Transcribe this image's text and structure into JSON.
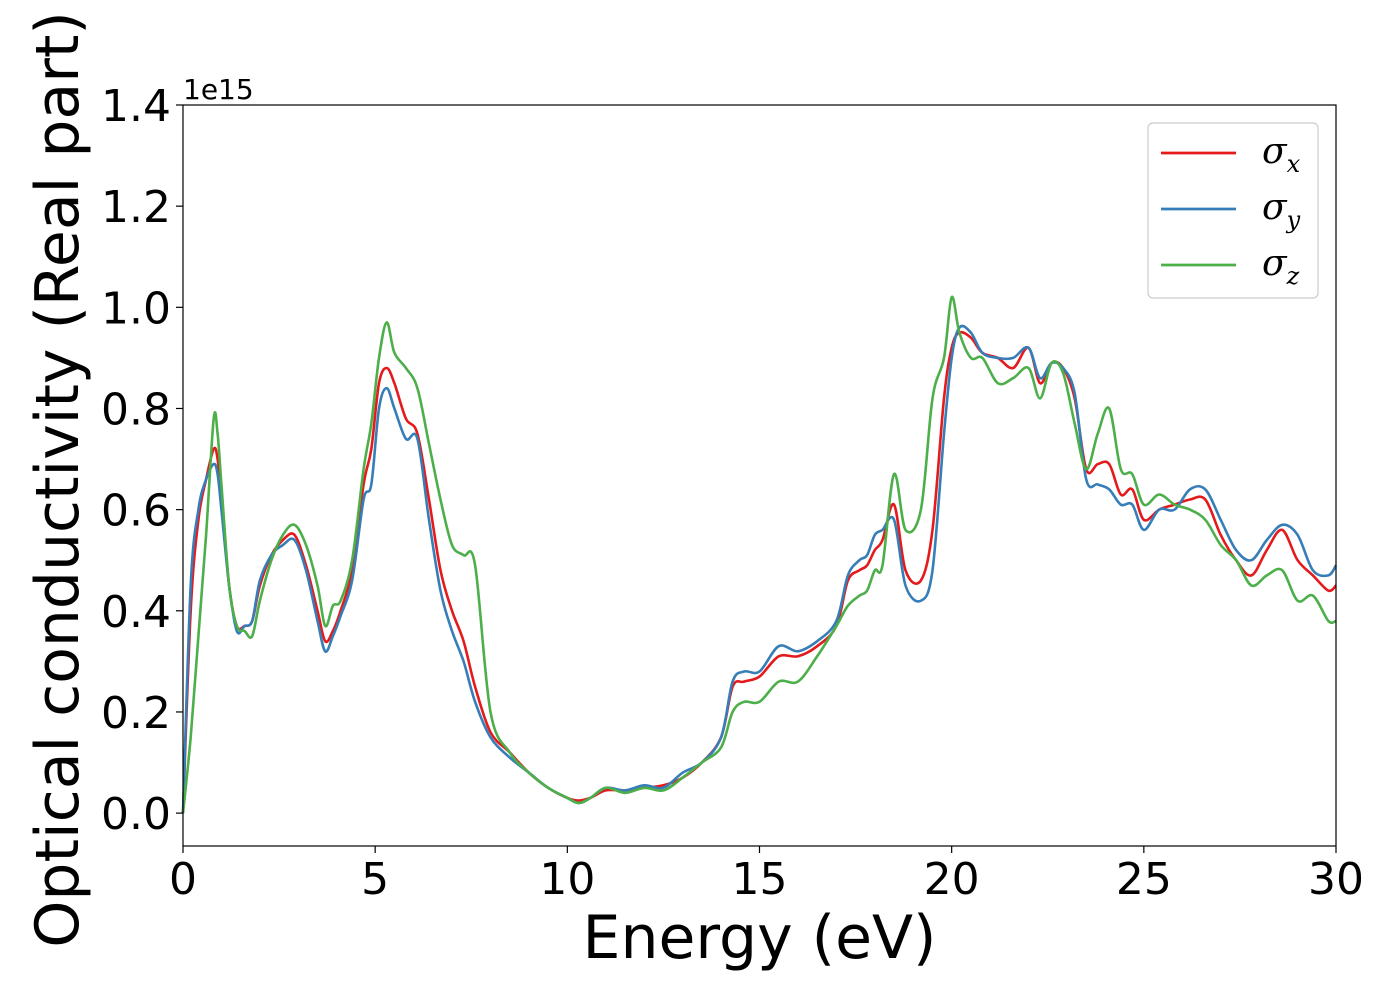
{
  "chart_data": {
    "type": "line",
    "xlabel": "Energy (eV)",
    "ylabel": "Optical conductivity (Real part)",
    "y_offset_label": "1e15",
    "xlim": [
      0,
      30
    ],
    "ylim": [
      -0.065,
      1.4
    ],
    "x_ticks": [
      0,
      5,
      10,
      15,
      20,
      25,
      30
    ],
    "x_tick_labels": [
      "0",
      "5",
      "10",
      "15",
      "20",
      "25",
      "30"
    ],
    "y_ticks": [
      0.0,
      0.2,
      0.4,
      0.6,
      0.8,
      1.0,
      1.2,
      1.4
    ],
    "y_tick_labels": [
      "0.0",
      "0.2",
      "0.4",
      "0.6",
      "0.8",
      "1.0",
      "1.2",
      "1.4"
    ],
    "grid": false,
    "legend_position": "top-right",
    "series": [
      {
        "name": "σx",
        "name_main": "σ",
        "name_sub": "x",
        "color": "#e41a1c",
        "x": [
          0,
          0.2,
          0.4,
          0.6,
          0.8,
          0.9,
          1.0,
          1.2,
          1.4,
          1.6,
          1.8,
          2.0,
          2.3,
          2.6,
          2.9,
          3.2,
          3.5,
          3.7,
          3.9,
          4.1,
          4.4,
          4.7,
          4.9,
          5.1,
          5.3,
          5.5,
          5.8,
          6.1,
          6.4,
          6.7,
          7.0,
          7.3,
          7.6,
          8.0,
          8.5,
          9.0,
          9.5,
          10.0,
          10.3,
          10.6,
          11.0,
          11.5,
          12.0,
          12.5,
          13.0,
          13.5,
          14.0,
          14.3,
          14.6,
          15.0,
          15.5,
          16.0,
          16.5,
          17.0,
          17.3,
          17.6,
          17.8,
          18.0,
          18.2,
          18.5,
          18.8,
          19.2,
          19.5,
          19.8,
          20.0,
          20.2,
          20.5,
          20.8,
          21.2,
          21.6,
          22.0,
          22.3,
          22.6,
          22.9,
          23.2,
          23.5,
          23.8,
          24.1,
          24.4,
          24.7,
          25.0,
          25.4,
          25.8,
          26.2,
          26.6,
          27.0,
          27.4,
          27.8,
          28.2,
          28.6,
          29.0,
          29.4,
          29.8,
          30.0
        ],
        "y": [
          0.0,
          0.4,
          0.58,
          0.66,
          0.72,
          0.7,
          0.62,
          0.45,
          0.37,
          0.37,
          0.38,
          0.45,
          0.51,
          0.54,
          0.55,
          0.49,
          0.4,
          0.34,
          0.36,
          0.4,
          0.48,
          0.65,
          0.72,
          0.85,
          0.88,
          0.85,
          0.78,
          0.75,
          0.62,
          0.48,
          0.4,
          0.34,
          0.25,
          0.16,
          0.12,
          0.08,
          0.05,
          0.03,
          0.025,
          0.03,
          0.045,
          0.045,
          0.05,
          0.055,
          0.07,
          0.1,
          0.15,
          0.25,
          0.26,
          0.27,
          0.31,
          0.31,
          0.33,
          0.37,
          0.46,
          0.48,
          0.49,
          0.52,
          0.54,
          0.61,
          0.48,
          0.46,
          0.56,
          0.82,
          0.92,
          0.95,
          0.94,
          0.91,
          0.9,
          0.88,
          0.92,
          0.85,
          0.89,
          0.88,
          0.82,
          0.68,
          0.69,
          0.69,
          0.63,
          0.64,
          0.58,
          0.6,
          0.61,
          0.62,
          0.62,
          0.55,
          0.5,
          0.47,
          0.52,
          0.56,
          0.5,
          0.47,
          0.44,
          0.45
        ]
      },
      {
        "name": "σy",
        "name_main": "σ",
        "name_sub": "y",
        "color": "#377eb8",
        "x": [
          0,
          0.2,
          0.4,
          0.6,
          0.8,
          0.9,
          1.0,
          1.2,
          1.4,
          1.6,
          1.8,
          2.0,
          2.3,
          2.6,
          2.9,
          3.2,
          3.5,
          3.7,
          3.9,
          4.1,
          4.4,
          4.7,
          4.9,
          5.1,
          5.3,
          5.5,
          5.8,
          6.1,
          6.4,
          6.7,
          7.0,
          7.3,
          7.6,
          8.0,
          8.5,
          9.0,
          9.5,
          10.0,
          10.3,
          10.6,
          11.0,
          11.5,
          12.0,
          12.5,
          13.0,
          13.5,
          14.0,
          14.3,
          14.6,
          15.0,
          15.5,
          16.0,
          16.5,
          17.0,
          17.3,
          17.6,
          17.8,
          18.0,
          18.2,
          18.5,
          18.8,
          19.2,
          19.5,
          19.8,
          20.0,
          20.2,
          20.5,
          20.8,
          21.2,
          21.6,
          22.0,
          22.3,
          22.6,
          22.9,
          23.2,
          23.5,
          23.8,
          24.1,
          24.4,
          24.7,
          25.0,
          25.4,
          25.8,
          26.2,
          26.6,
          27.0,
          27.4,
          27.8,
          28.2,
          28.6,
          29.0,
          29.4,
          29.8,
          30.0
        ],
        "y": [
          0.0,
          0.45,
          0.6,
          0.66,
          0.69,
          0.67,
          0.6,
          0.45,
          0.36,
          0.37,
          0.38,
          0.46,
          0.51,
          0.53,
          0.54,
          0.48,
          0.38,
          0.32,
          0.35,
          0.39,
          0.46,
          0.62,
          0.65,
          0.8,
          0.84,
          0.8,
          0.74,
          0.74,
          0.58,
          0.44,
          0.36,
          0.3,
          0.22,
          0.15,
          0.11,
          0.08,
          0.05,
          0.03,
          0.02,
          0.03,
          0.05,
          0.045,
          0.055,
          0.05,
          0.08,
          0.1,
          0.15,
          0.26,
          0.28,
          0.28,
          0.33,
          0.32,
          0.34,
          0.38,
          0.47,
          0.5,
          0.51,
          0.55,
          0.56,
          0.58,
          0.45,
          0.42,
          0.48,
          0.75,
          0.9,
          0.96,
          0.95,
          0.91,
          0.9,
          0.9,
          0.92,
          0.86,
          0.89,
          0.88,
          0.83,
          0.66,
          0.65,
          0.64,
          0.61,
          0.61,
          0.56,
          0.6,
          0.6,
          0.64,
          0.64,
          0.58,
          0.52,
          0.5,
          0.54,
          0.57,
          0.55,
          0.48,
          0.47,
          0.49
        ]
      },
      {
        "name": "σz",
        "name_main": "σ",
        "name_sub": "z",
        "color": "#4daf4a",
        "x": [
          0,
          0.2,
          0.4,
          0.6,
          0.8,
          0.9,
          1.0,
          1.2,
          1.4,
          1.6,
          1.8,
          2.0,
          2.3,
          2.6,
          2.9,
          3.2,
          3.5,
          3.7,
          3.9,
          4.1,
          4.4,
          4.7,
          4.9,
          5.1,
          5.3,
          5.5,
          5.8,
          6.1,
          6.4,
          6.7,
          7.0,
          7.3,
          7.6,
          8.0,
          8.5,
          9.0,
          9.5,
          10.0,
          10.3,
          10.6,
          11.0,
          11.5,
          12.0,
          12.5,
          13.0,
          13.5,
          14.0,
          14.3,
          14.6,
          15.0,
          15.5,
          16.0,
          16.5,
          17.0,
          17.3,
          17.6,
          17.8,
          18.0,
          18.2,
          18.5,
          18.8,
          19.2,
          19.5,
          19.8,
          20.0,
          20.2,
          20.5,
          20.8,
          21.2,
          21.6,
          22.0,
          22.3,
          22.6,
          22.9,
          23.2,
          23.5,
          23.8,
          24.1,
          24.4,
          24.7,
          25.0,
          25.4,
          25.8,
          26.2,
          26.6,
          27.0,
          27.4,
          27.8,
          28.2,
          28.6,
          29.0,
          29.4,
          29.8,
          30.0
        ],
        "y": [
          0.0,
          0.15,
          0.35,
          0.55,
          0.78,
          0.75,
          0.65,
          0.45,
          0.37,
          0.36,
          0.35,
          0.42,
          0.5,
          0.55,
          0.57,
          0.53,
          0.45,
          0.37,
          0.41,
          0.42,
          0.5,
          0.68,
          0.77,
          0.9,
          0.97,
          0.91,
          0.88,
          0.84,
          0.73,
          0.62,
          0.53,
          0.51,
          0.49,
          0.2,
          0.12,
          0.08,
          0.05,
          0.03,
          0.02,
          0.03,
          0.05,
          0.04,
          0.05,
          0.045,
          0.07,
          0.1,
          0.13,
          0.2,
          0.22,
          0.22,
          0.26,
          0.26,
          0.31,
          0.37,
          0.41,
          0.43,
          0.44,
          0.48,
          0.49,
          0.67,
          0.56,
          0.6,
          0.82,
          0.9,
          1.02,
          0.95,
          0.9,
          0.9,
          0.85,
          0.86,
          0.88,
          0.82,
          0.89,
          0.87,
          0.77,
          0.68,
          0.75,
          0.8,
          0.68,
          0.67,
          0.61,
          0.63,
          0.61,
          0.6,
          0.58,
          0.53,
          0.5,
          0.45,
          0.47,
          0.48,
          0.42,
          0.43,
          0.38,
          0.38
        ]
      }
    ]
  }
}
